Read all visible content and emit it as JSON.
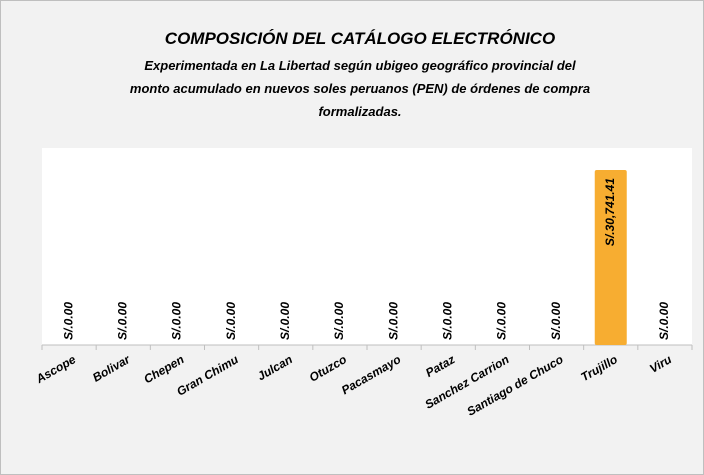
{
  "chart_data": {
    "type": "bar",
    "title": "COMPOSICIÓN DEL CATÁLOGO ELECTRÓNICO",
    "subtitle": [
      "Experimentada en La Libertad según ubigeo geográfico provincial del",
      "monto acumulado en nuevos soles peruanos (PEN) de órdenes de compra",
      "formalizadas."
    ],
    "categories": [
      "Ascope",
      "Bolivar",
      "Chepen",
      "Gran Chimu",
      "Julcan",
      "Otuzco",
      "Pacasmayo",
      "Pataz",
      "Sanchez Carrion",
      "Santiago de Chuco",
      "Trujillo",
      "Viru"
    ],
    "values": [
      0,
      0,
      0,
      0,
      0,
      0,
      0,
      0,
      0,
      0,
      30741.41,
      0
    ],
    "value_labels": [
      "S/.0.00",
      "S/.0.00",
      "S/.0.00",
      "S/.0.00",
      "S/.0.00",
      "S/.0.00",
      "S/.0.00",
      "S/.0.00",
      "S/.0.00",
      "S/.0.00",
      "S/.30,741.41",
      "S/.0.00"
    ],
    "color": "#f7ad31"
  }
}
